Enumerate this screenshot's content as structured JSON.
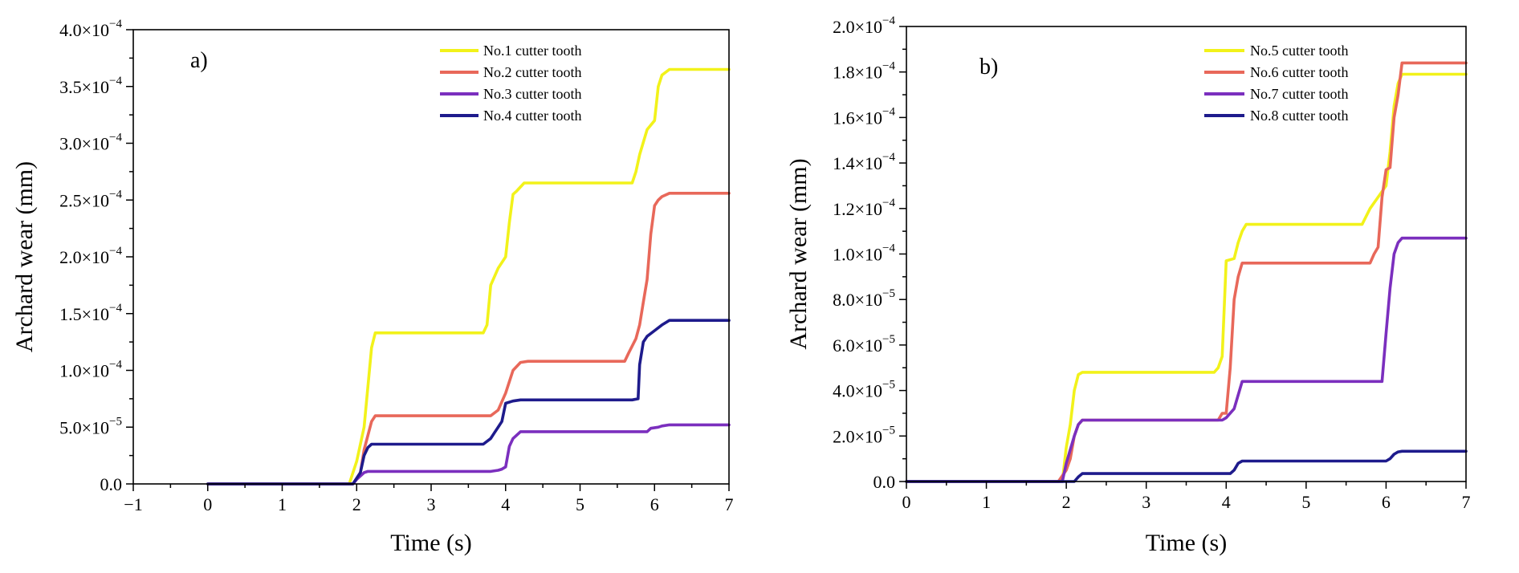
{
  "chart_data": [
    {
      "type": "line",
      "panel_label": "a)",
      "xlabel": "Time (s)",
      "ylabel": "Archard wear (mm)",
      "xlim": [
        -1,
        7
      ],
      "ylim": [
        0,
        0.0004
      ],
      "x_ticks": [
        -1,
        0,
        1,
        2,
        3,
        4,
        5,
        6,
        7
      ],
      "x_tick_labels": [
        "−1",
        "0",
        "1",
        "2",
        "3",
        "4",
        "5",
        "6",
        "7"
      ],
      "y_ticks": [
        0,
        5e-05,
        0.0001,
        0.00015,
        0.0002,
        0.00025,
        0.0003,
        0.00035,
        0.0004
      ],
      "y_tick_labels": [
        {
          "mantissa": "0.0",
          "exponent": ""
        },
        {
          "mantissa": "5.0×10",
          "exponent": "−5"
        },
        {
          "mantissa": "1.0×10",
          "exponent": "−4"
        },
        {
          "mantissa": "1.5×10",
          "exponent": "−4"
        },
        {
          "mantissa": "2.0×10",
          "exponent": "−4"
        },
        {
          "mantissa": "2.5×10",
          "exponent": "−4"
        },
        {
          "mantissa": "3.0×10",
          "exponent": "−4"
        },
        {
          "mantissa": "3.5×10",
          "exponent": "−4"
        },
        {
          "mantissa": "4.0×10",
          "exponent": "−4"
        }
      ],
      "legend_position": "top-right",
      "series": [
        {
          "name": "No.1 cutter tooth",
          "color": "#f2f21a",
          "x": [
            0,
            1.9,
            2.0,
            2.1,
            2.2,
            2.25,
            3.7,
            3.75,
            3.8,
            3.9,
            4.0,
            4.05,
            4.1,
            4.15,
            4.25,
            5.7,
            5.75,
            5.8,
            5.9,
            6.0,
            6.05,
            6.1,
            6.2,
            7
          ],
          "y": [
            0,
            0,
            2e-05,
            5e-05,
            0.00012,
            0.000133,
            0.000133,
            0.00014,
            0.000175,
            0.00019,
            0.0002,
            0.00023,
            0.000255,
            0.000258,
            0.000265,
            0.000265,
            0.000275,
            0.00029,
            0.000312,
            0.00032,
            0.00035,
            0.00036,
            0.000365,
            0.000365
          ]
        },
        {
          "name": "No.2 cutter tooth",
          "color": "#e8685a",
          "x": [
            0,
            1.95,
            2.0,
            2.05,
            2.1,
            2.2,
            2.25,
            3.8,
            3.9,
            4.0,
            4.1,
            4.2,
            4.3,
            5.6,
            5.65,
            5.75,
            5.8,
            5.85,
            5.9,
            5.95,
            6.0,
            6.05,
            6.1,
            6.2,
            7
          ],
          "y": [
            0,
            0,
            5e-06,
            1e-05,
            3e-05,
            5.5e-05,
            6e-05,
            6e-05,
            6.5e-05,
            8e-05,
            0.0001,
            0.000107,
            0.000108,
            0.000108,
            0.000115,
            0.000128,
            0.00014,
            0.00016,
            0.00018,
            0.00022,
            0.000245,
            0.00025,
            0.000253,
            0.000256,
            0.000256
          ]
        },
        {
          "name": "No.3 cutter tooth",
          "color": "#7b2fbe",
          "x": [
            0,
            1.95,
            2.0,
            2.1,
            2.15,
            3.8,
            3.9,
            3.95,
            4.0,
            4.05,
            4.1,
            4.2,
            5.9,
            5.95,
            6.05,
            6.1,
            6.2,
            7
          ],
          "y": [
            0,
            0,
            4e-06,
            1e-05,
            1.1e-05,
            1.1e-05,
            1.2e-05,
            1.3e-05,
            1.5e-05,
            3.3e-05,
            4e-05,
            4.6e-05,
            4.6e-05,
            4.9e-05,
            5e-05,
            5.1e-05,
            5.2e-05,
            5.2e-05
          ]
        },
        {
          "name": "No.4 cutter tooth",
          "color": "#1e1b8c",
          "x": [
            0,
            1.95,
            2.0,
            2.05,
            2.1,
            2.15,
            2.2,
            3.7,
            3.8,
            3.85,
            3.9,
            3.95,
            4.0,
            4.1,
            4.2,
            5.7,
            5.78,
            5.8,
            5.85,
            5.9,
            6.0,
            6.1,
            6.2,
            7
          ],
          "y": [
            0,
            0,
            5e-06,
            1e-05,
            2.5e-05,
            3.2e-05,
            3.5e-05,
            3.5e-05,
            4e-05,
            4.5e-05,
            5e-05,
            5.5e-05,
            7.1e-05,
            7.3e-05,
            7.4e-05,
            7.4e-05,
            7.5e-05,
            0.000105,
            0.000125,
            0.00013,
            0.000135,
            0.00014,
            0.000144,
            0.000144
          ]
        }
      ]
    },
    {
      "type": "line",
      "panel_label": "b)",
      "xlabel": "Time (s)",
      "ylabel": "Archard wear (mm)",
      "xlim": [
        0,
        7
      ],
      "ylim": [
        0,
        0.0002
      ],
      "x_ticks": [
        0,
        1,
        2,
        3,
        4,
        5,
        6,
        7
      ],
      "x_tick_labels": [
        "0",
        "1",
        "2",
        "3",
        "4",
        "5",
        "6",
        "7"
      ],
      "y_ticks": [
        0,
        2e-05,
        4e-05,
        6e-05,
        8e-05,
        0.0001,
        0.00012,
        0.00014,
        0.00016,
        0.00018,
        0.0002
      ],
      "y_tick_labels": [
        {
          "mantissa": "0.0",
          "exponent": ""
        },
        {
          "mantissa": "2.0×10",
          "exponent": "−5"
        },
        {
          "mantissa": "4.0×10",
          "exponent": "−5"
        },
        {
          "mantissa": "6.0×10",
          "exponent": "−5"
        },
        {
          "mantissa": "8.0×10",
          "exponent": "−5"
        },
        {
          "mantissa": "1.0×10",
          "exponent": "−4"
        },
        {
          "mantissa": "1.2×10",
          "exponent": "−4"
        },
        {
          "mantissa": "1.4×10",
          "exponent": "−4"
        },
        {
          "mantissa": "1.6×10",
          "exponent": "−4"
        },
        {
          "mantissa": "1.8×10",
          "exponent": "−4"
        },
        {
          "mantissa": "2.0×10",
          "exponent": "−4"
        }
      ],
      "legend_position": "top-right",
      "series": [
        {
          "name": "No.5 cutter tooth",
          "color": "#f2f21a",
          "x": [
            0,
            1.95,
            2.0,
            2.05,
            2.1,
            2.15,
            2.2,
            3.85,
            3.9,
            3.95,
            4.0,
            4.1,
            4.15,
            4.2,
            4.25,
            5.7,
            5.8,
            5.9,
            6.0,
            6.05,
            6.1,
            6.15,
            6.2,
            7
          ],
          "y": [
            0,
            0,
            1.5e-05,
            2.5e-05,
            4e-05,
            4.7e-05,
            4.8e-05,
            4.8e-05,
            5e-05,
            5.5e-05,
            9.7e-05,
            9.8e-05,
            0.000105,
            0.00011,
            0.000113,
            0.000113,
            0.00012,
            0.000125,
            0.00013,
            0.000145,
            0.000165,
            0.000175,
            0.000179,
            0.000179
          ]
        },
        {
          "name": "No.6 cutter tooth",
          "color": "#e8685a",
          "x": [
            0,
            1.9,
            2.0,
            2.05,
            2.1,
            2.15,
            2.2,
            3.9,
            3.95,
            4.0,
            4.05,
            4.1,
            4.15,
            4.2,
            5.8,
            5.85,
            5.9,
            5.95,
            6.0,
            6.05,
            6.1,
            6.15,
            6.2,
            7
          ],
          "y": [
            0,
            0,
            5e-06,
            1e-05,
            2e-05,
            2.5e-05,
            2.7e-05,
            2.7e-05,
            3e-05,
            3e-05,
            5e-05,
            8e-05,
            9e-05,
            9.6e-05,
            9.6e-05,
            0.0001,
            0.000103,
            0.000125,
            0.000137,
            0.000138,
            0.00016,
            0.00017,
            0.000184,
            0.000184
          ]
        },
        {
          "name": "No.7 cutter tooth",
          "color": "#7b2fbe",
          "x": [
            0,
            1.95,
            2.0,
            2.1,
            2.15,
            2.2,
            3.95,
            4.0,
            4.1,
            4.2,
            5.95,
            6.0,
            6.05,
            6.1,
            6.15,
            6.2,
            7
          ],
          "y": [
            0,
            0,
            8e-06,
            2e-05,
            2.5e-05,
            2.7e-05,
            2.7e-05,
            2.8e-05,
            3.2e-05,
            4.4e-05,
            4.4e-05,
            6.5e-05,
            8.5e-05,
            0.0001,
            0.000105,
            0.000107,
            0.000107
          ]
        },
        {
          "name": "No.8 cutter tooth",
          "color": "#1e1b8c",
          "x": [
            0,
            2.1,
            2.15,
            2.2,
            4.05,
            4.1,
            4.15,
            4.2,
            6.0,
            6.05,
            6.1,
            6.15,
            6.2,
            7
          ],
          "y": [
            0,
            0,
            2e-06,
            3.5e-06,
            3.5e-06,
            5e-06,
            8e-06,
            9e-06,
            9e-06,
            1e-05,
            1.2e-05,
            1.3e-05,
            1.33e-05,
            1.33e-05
          ]
        }
      ]
    }
  ]
}
